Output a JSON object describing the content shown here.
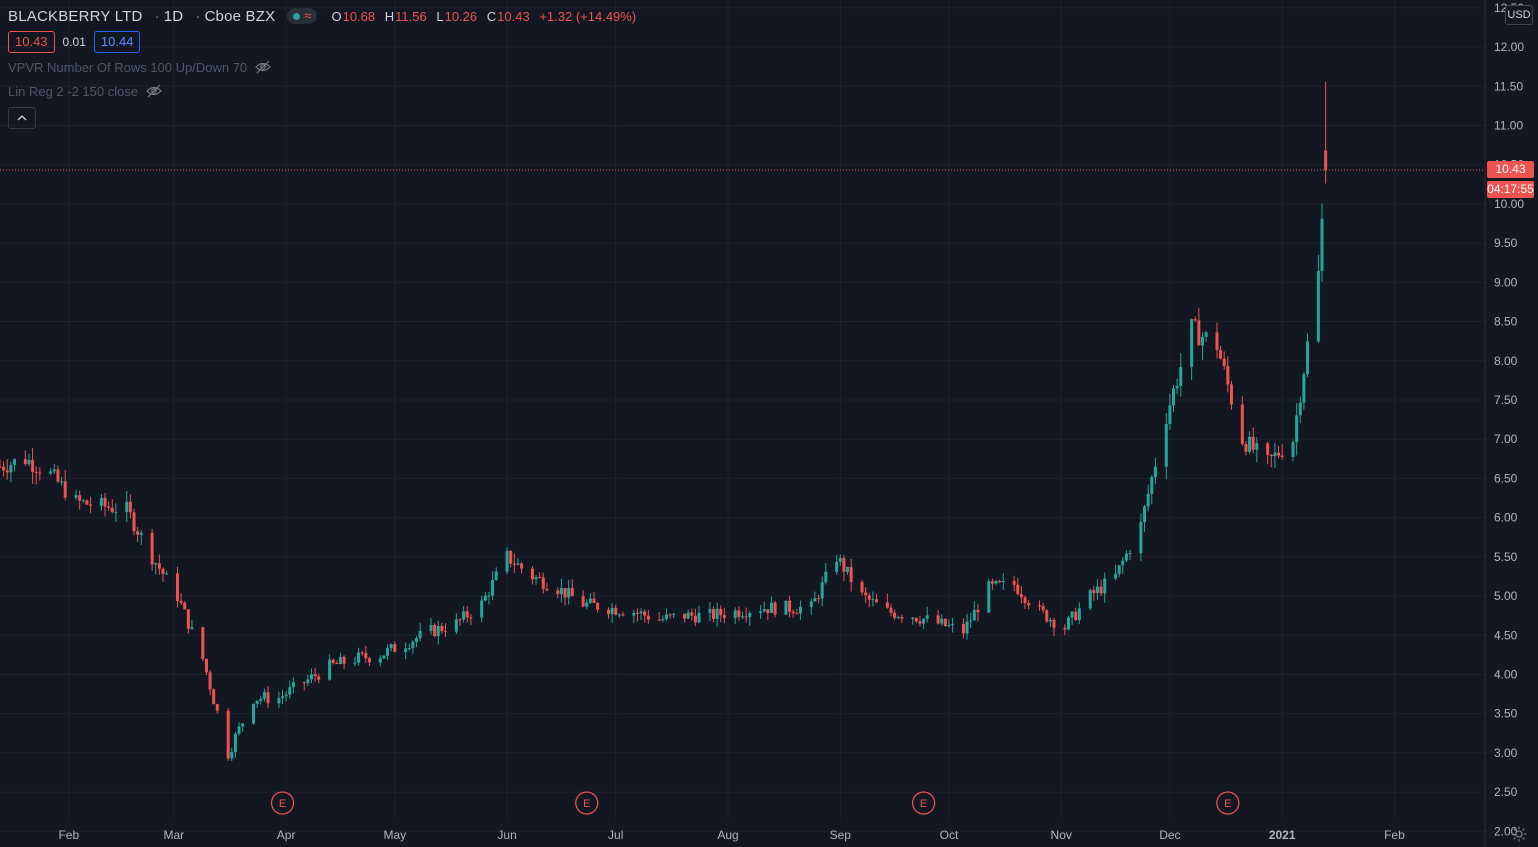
{
  "header": {
    "symbol": "BLACKBERRY LTD",
    "interval": "1D",
    "exchange": "Cboe BZX",
    "ohlc": {
      "o_label": "O",
      "o_value": "10.68",
      "h_label": "H",
      "h_value": "11.56",
      "l_label": "L",
      "l_value": "10.26",
      "c_label": "C",
      "c_value": "10.43",
      "change": "+1.32 (+14.49%)"
    },
    "bid": "10.43",
    "spread": "0.01",
    "ask": "10.44"
  },
  "indicators": [
    {
      "label": "VPVR Number Of Rows 100 Up/Down 70"
    },
    {
      "label": "Lin Reg 2 -2 150 close"
    }
  ],
  "price_axis": {
    "currency": "USD",
    "last_price_tag": "10.43",
    "countdown": "04:17:55",
    "tick_labels": [
      "2.00",
      "2.50",
      "3.00",
      "3.50",
      "4.00",
      "4.50",
      "5.00",
      "5.50",
      "6.00",
      "6.50",
      "7.00",
      "7.50",
      "8.00",
      "8.50",
      "9.00",
      "9.50",
      "10.00",
      "10.50",
      "11.00",
      "11.50",
      "12.00",
      "12.50"
    ]
  },
  "time_axis": {
    "tick_labels": [
      "Feb",
      "Mar",
      "Apr",
      "May",
      "Jun",
      "Jul",
      "Aug",
      "Sep",
      "Oct",
      "Nov",
      "Dec",
      "2021",
      "Feb"
    ]
  },
  "earnings_markers": [
    "E",
    "E",
    "E",
    "E"
  ],
  "colors": {
    "background": "#131722",
    "up": "#26a69a",
    "down": "#ef5350",
    "grid": "#1e222d",
    "text": "#d1d4dc",
    "accent_blue": "#2962ff"
  },
  "chart_data": {
    "type": "candlestick",
    "title": "BLACKBERRY LTD · 1D · Cboe BZX",
    "ylabel": "USD",
    "ylim": [
      1.8,
      12.6
    ],
    "grid": true,
    "last_price": 10.43,
    "x_range": [
      "2020-01-13",
      "2021-02-26"
    ],
    "x_ticks": [
      {
        "label": "Feb",
        "date": "2020-02-01"
      },
      {
        "label": "Mar",
        "date": "2020-03-01"
      },
      {
        "label": "Apr",
        "date": "2020-04-01"
      },
      {
        "label": "May",
        "date": "2020-05-01"
      },
      {
        "label": "Jun",
        "date": "2020-06-01"
      },
      {
        "label": "Jul",
        "date": "2020-07-01"
      },
      {
        "label": "Aug",
        "date": "2020-08-01"
      },
      {
        "label": "Sep",
        "date": "2020-09-01"
      },
      {
        "label": "Oct",
        "date": "2020-10-01"
      },
      {
        "label": "Nov",
        "date": "2020-11-01"
      },
      {
        "label": "Dec",
        "date": "2020-12-01"
      },
      {
        "label": "2021",
        "date": "2021-01-01"
      },
      {
        "label": "Feb",
        "date": "2021-02-01"
      }
    ],
    "y_ticks": [
      2.0,
      2.5,
      3.0,
      3.5,
      4.0,
      4.5,
      5.0,
      5.5,
      6.0,
      6.5,
      7.0,
      7.5,
      8.0,
      8.5,
      9.0,
      9.5,
      10.0,
      10.5,
      11.0,
      11.5,
      12.0,
      12.5
    ],
    "earnings_dates": [
      "2020-03-31",
      "2020-06-23",
      "2020-09-24",
      "2020-12-17"
    ],
    "closes": [
      {
        "date": "2020-01-13",
        "close": 6.65
      },
      {
        "date": "2020-01-20",
        "close": 6.75
      },
      {
        "date": "2020-01-27",
        "close": 6.55
      },
      {
        "date": "2020-02-03",
        "close": 6.2
      },
      {
        "date": "2020-02-10",
        "close": 6.15
      },
      {
        "date": "2020-02-17",
        "close": 6.1
      },
      {
        "date": "2020-02-24",
        "close": 5.5
      },
      {
        "date": "2020-03-02",
        "close": 5.0
      },
      {
        "date": "2020-03-09",
        "close": 4.2
      },
      {
        "date": "2020-03-16",
        "close": 3.0
      },
      {
        "date": "2020-03-23",
        "close": 3.7
      },
      {
        "date": "2020-03-30",
        "close": 3.7
      },
      {
        "date": "2020-04-06",
        "close": 3.9
      },
      {
        "date": "2020-04-13",
        "close": 4.1
      },
      {
        "date": "2020-04-20",
        "close": 4.2
      },
      {
        "date": "2020-04-27",
        "close": 4.25
      },
      {
        "date": "2020-05-04",
        "close": 4.4
      },
      {
        "date": "2020-05-11",
        "close": 4.55
      },
      {
        "date": "2020-05-18",
        "close": 4.65
      },
      {
        "date": "2020-05-25",
        "close": 4.9
      },
      {
        "date": "2020-06-01",
        "close": 5.5
      },
      {
        "date": "2020-06-08",
        "close": 5.25
      },
      {
        "date": "2020-06-15",
        "close": 5.1
      },
      {
        "date": "2020-06-22",
        "close": 4.9
      },
      {
        "date": "2020-06-29",
        "close": 4.85
      },
      {
        "date": "2020-07-06",
        "close": 4.8
      },
      {
        "date": "2020-07-13",
        "close": 4.7
      },
      {
        "date": "2020-07-20",
        "close": 4.75
      },
      {
        "date": "2020-07-27",
        "close": 4.75
      },
      {
        "date": "2020-08-03",
        "close": 4.8
      },
      {
        "date": "2020-08-10",
        "close": 4.85
      },
      {
        "date": "2020-08-17",
        "close": 4.85
      },
      {
        "date": "2020-08-24",
        "close": 4.85
      },
      {
        "date": "2020-08-31",
        "close": 5.5
      },
      {
        "date": "2020-09-07",
        "close": 5.0
      },
      {
        "date": "2020-09-14",
        "close": 4.8
      },
      {
        "date": "2020-09-21",
        "close": 4.75
      },
      {
        "date": "2020-09-28",
        "close": 4.65
      },
      {
        "date": "2020-10-05",
        "close": 4.55
      },
      {
        "date": "2020-10-12",
        "close": 5.1
      },
      {
        "date": "2020-10-19",
        "close": 5.15
      },
      {
        "date": "2020-10-26",
        "close": 4.8
      },
      {
        "date": "2020-11-02",
        "close": 4.6
      },
      {
        "date": "2020-11-09",
        "close": 5.0
      },
      {
        "date": "2020-11-16",
        "close": 5.25
      },
      {
        "date": "2020-11-23",
        "close": 5.9
      },
      {
        "date": "2020-11-30",
        "close": 7.3
      },
      {
        "date": "2020-12-07",
        "close": 8.4
      },
      {
        "date": "2020-12-14",
        "close": 8.2
      },
      {
        "date": "2020-12-21",
        "close": 7.0
      },
      {
        "date": "2020-12-28",
        "close": 6.7
      },
      {
        "date": "2021-01-04",
        "close": 7.0
      },
      {
        "date": "2021-01-11",
        "close": 9.1
      },
      {
        "date": "2021-01-13",
        "close": 10.43
      }
    ]
  }
}
